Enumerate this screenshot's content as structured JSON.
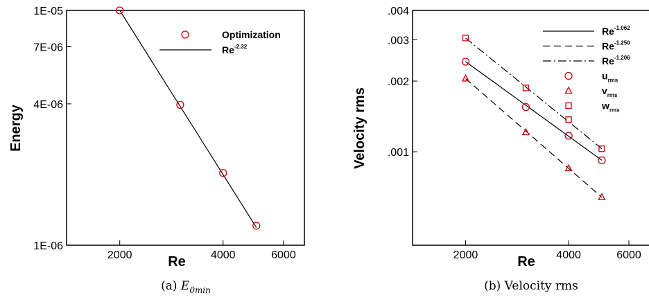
{
  "chart_data": [
    {
      "type": "scatter",
      "ylabel": "Energy",
      "xlabel": "Re",
      "xscale": "log",
      "yscale": "log",
      "xlim": [
        1400,
        6900
      ],
      "ylim": [
        1e-06,
        1e-05
      ],
      "xticks": [
        {
          "value": 2000,
          "label": "2000"
        },
        {
          "value": 4000,
          "label": "4000"
        },
        {
          "value": 6000,
          "label": "6000"
        }
      ],
      "yticks": [
        {
          "value": 1e-06,
          "label": "1E-06"
        },
        {
          "value": 4e-06,
          "label": "4E-06"
        },
        {
          "value": 7e-06,
          "label": "7E-06"
        },
        {
          "value": 1e-05,
          "label": "1E-05"
        }
      ],
      "series": [
        {
          "name": "Optimization",
          "kind": "marker",
          "marker": "circle",
          "x": [
            2000,
            3000,
            4000,
            5000
          ],
          "y": [
            1e-05,
            3.96e-06,
            2.03e-06,
            1.21e-06
          ]
        },
        {
          "name": "Re",
          "exponent": "-2.32",
          "kind": "line",
          "dash": "solid",
          "x": [
            2000,
            5000
          ],
          "y": [
            1e-05,
            1.19e-06
          ]
        }
      ],
      "legend_position": "top-right",
      "caption": {
        "prefix": "(a) ",
        "math": "E",
        "sub": "0min"
      }
    },
    {
      "type": "scatter",
      "ylabel": "Velocity rms",
      "xlabel": "Re",
      "xscale": "log",
      "yscale": "log",
      "xlim": [
        1400,
        6900
      ],
      "ylim": [
        0.0004,
        0.004
      ],
      "xticks": [
        {
          "value": 2000,
          "label": "2000"
        },
        {
          "value": 4000,
          "label": "4000"
        },
        {
          "value": 6000,
          "label": "6000"
        }
      ],
      "yticks": [
        {
          "value": 0.001,
          "label": ".001"
        },
        {
          "value": 0.002,
          "label": ".002"
        },
        {
          "value": 0.003,
          "label": ".003"
        },
        {
          "value": 0.004,
          "label": ".004"
        }
      ],
      "series": [
        {
          "name": "Re",
          "exponent": "-1.062",
          "kind": "line",
          "dash": "solid",
          "x": [
            2000,
            5000
          ],
          "y": [
            0.00242,
            0.00092
          ]
        },
        {
          "name": "Re",
          "exponent": "-1.250",
          "kind": "line",
          "dash": "dash",
          "x": [
            2000,
            5000
          ],
          "y": [
            0.00205,
            0.00064
          ]
        },
        {
          "name": "Re",
          "exponent": "-1.206",
          "kind": "line",
          "dash": "dashdot",
          "x": [
            2000,
            5000
          ],
          "y": [
            0.00305,
            0.00103
          ]
        },
        {
          "name": "u",
          "sub": "rms",
          "kind": "marker",
          "marker": "circle",
          "x": [
            2000,
            3000,
            4000,
            5000
          ],
          "y": [
            0.00242,
            0.00155,
            0.00117,
            0.00092
          ]
        },
        {
          "name": "v",
          "sub": "rms",
          "kind": "marker",
          "marker": "triangle",
          "x": [
            2000,
            3000,
            4000,
            5000
          ],
          "y": [
            0.00205,
            0.00121,
            0.00085,
            0.00064
          ]
        },
        {
          "name": "w",
          "sub": "rms",
          "kind": "marker",
          "marker": "square",
          "x": [
            2000,
            3000,
            4000,
            5000
          ],
          "y": [
            0.00305,
            0.00187,
            0.00137,
            0.00103
          ]
        }
      ],
      "legend_position": "top-right",
      "caption": {
        "prefix": "(b) ",
        "text": "Velocity rms"
      }
    }
  ],
  "colors": {
    "marker": "#cc0000",
    "line": "#000000",
    "axes": "#000000"
  }
}
